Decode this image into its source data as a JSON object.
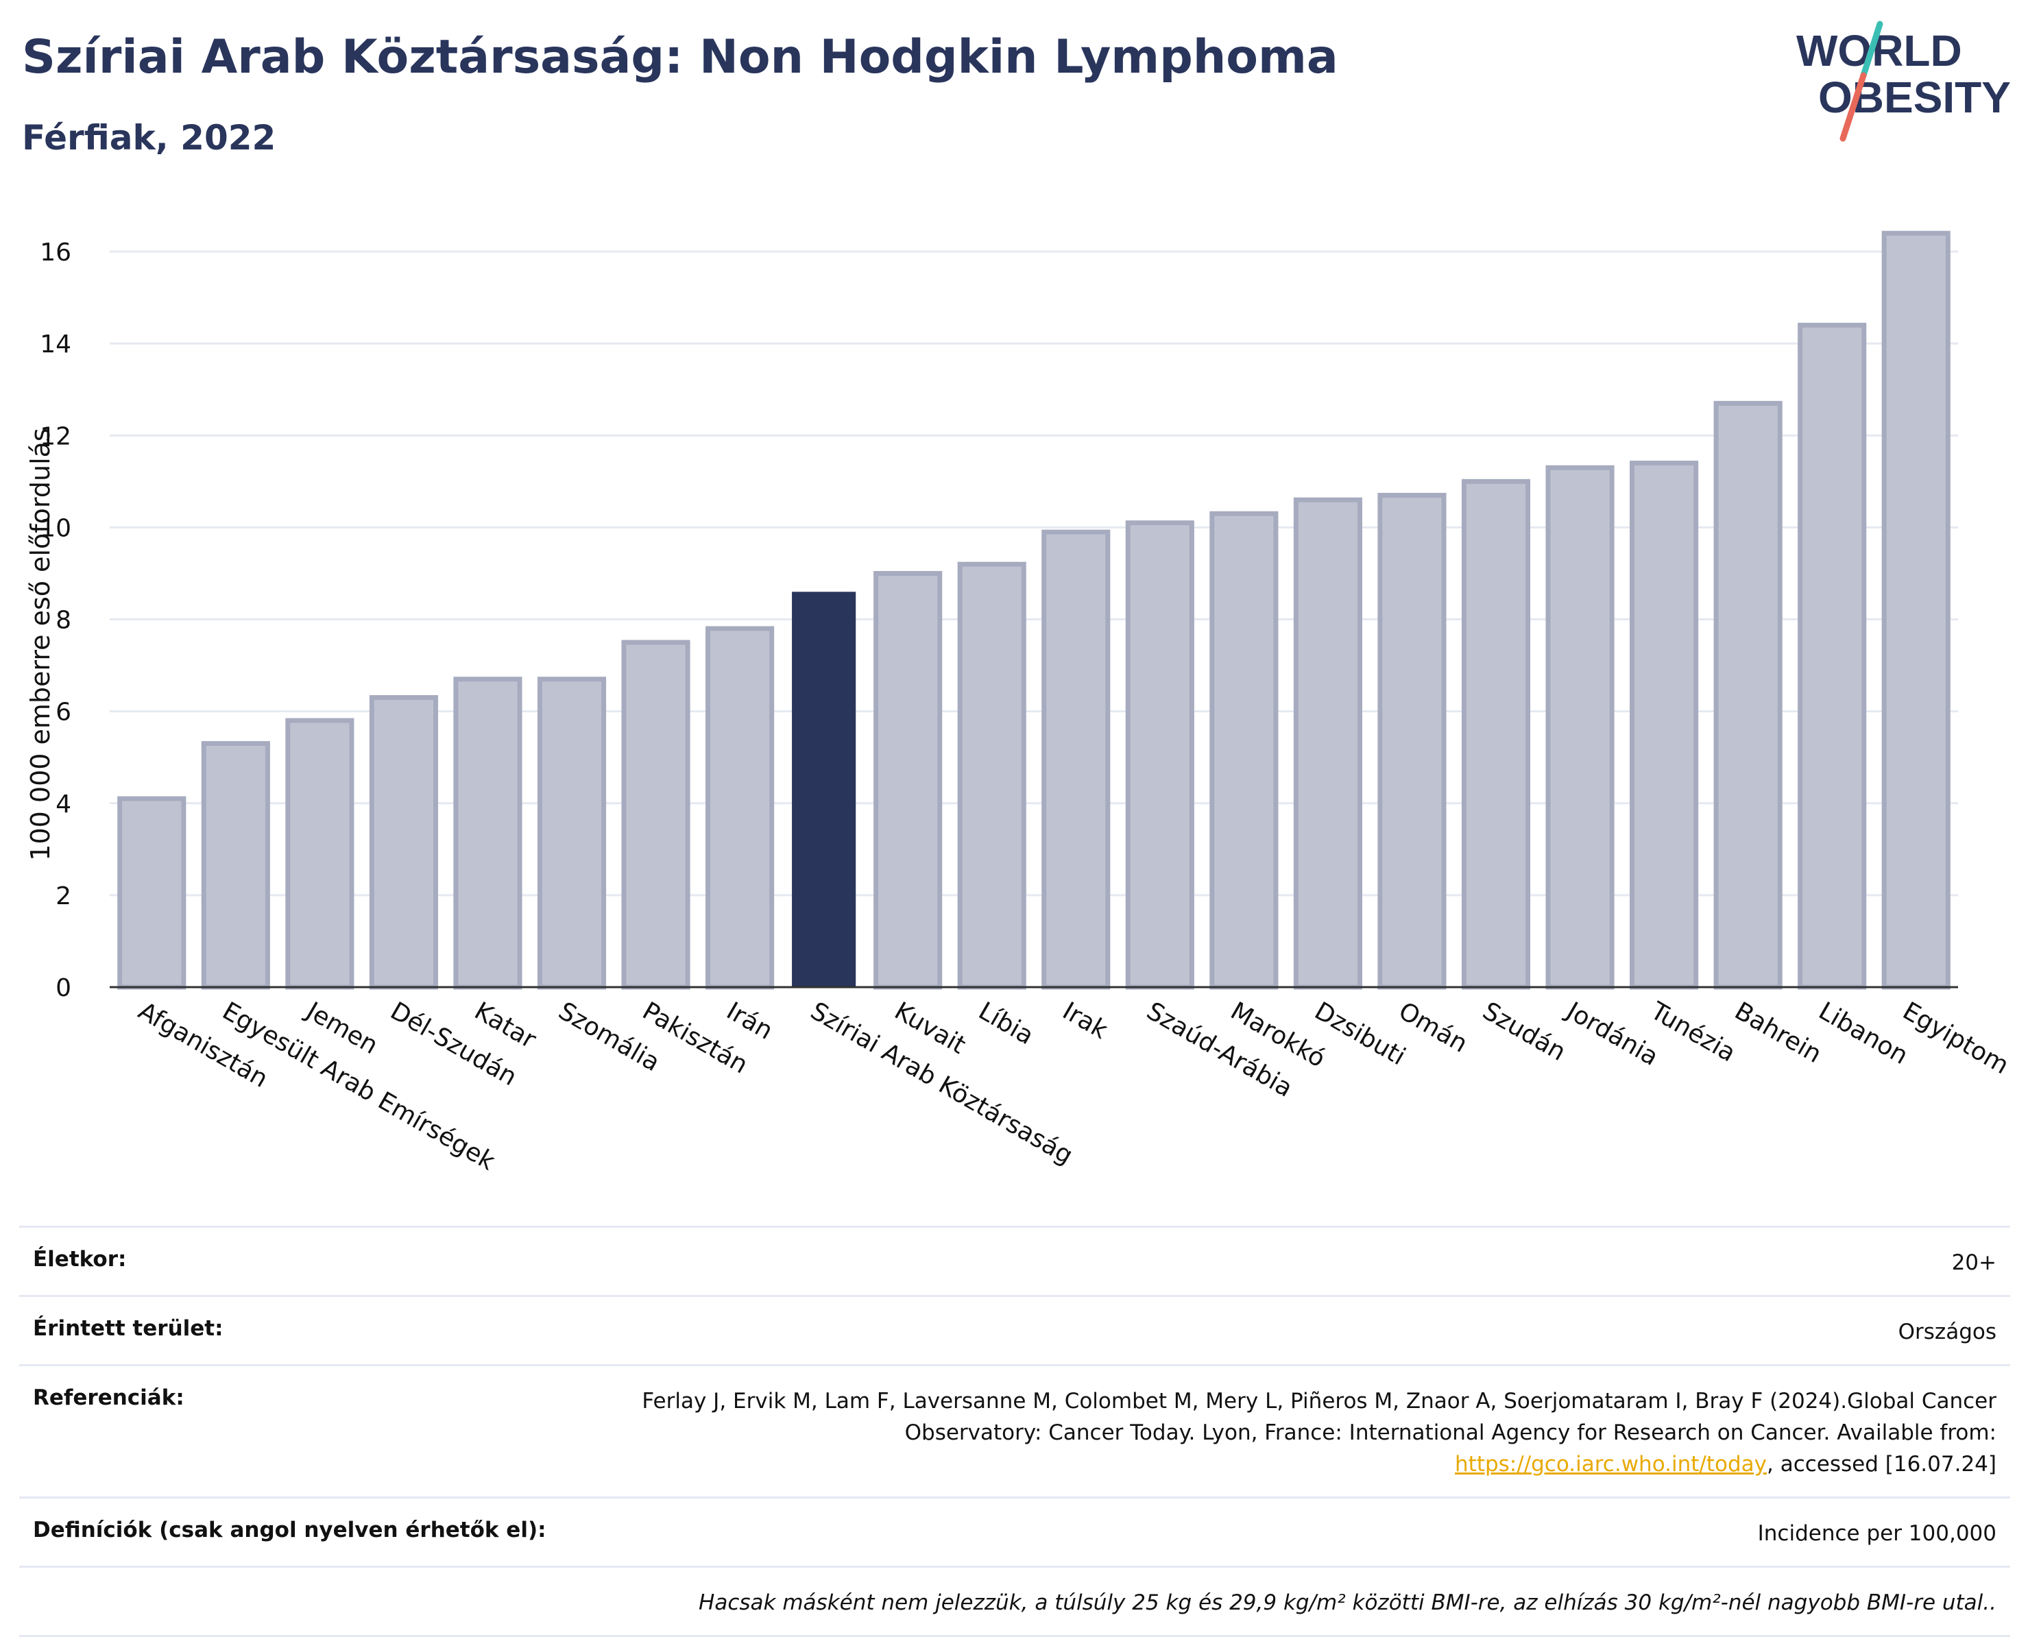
{
  "header": {
    "title": "Szíriai Arab Köztársaság: Non Hodgkin Lymphoma",
    "subtitle": "Férfiak, 2022"
  },
  "logo": {
    "line1": "WORLD",
    "line2": "OBESITY",
    "accent_colors": [
      "#3bbfb5",
      "#e8685a"
    ]
  },
  "colors": {
    "highlight_bar": "#2a355c",
    "other_bar_fill": "#bfc3d1",
    "other_bar_stroke": "#a6abbf",
    "grid": "#e6e9f2",
    "text": "#2a355c",
    "link": "#e8a900"
  },
  "chart_data": {
    "type": "bar",
    "title": "Szíriai Arab Köztársaság: Non Hodgkin Lymphoma",
    "subtitle": "Férfiak, 2022",
    "ylabel": "100 000 emberre eső előfordulás",
    "xlabel": "",
    "ylim": [
      0,
      17
    ],
    "yticks": [
      0,
      2,
      4,
      6,
      8,
      10,
      12,
      14,
      16
    ],
    "grid": true,
    "highlight": "Szíriai Arab Köztársaság",
    "categories": [
      "Afganisztán",
      "Egyesült Arab Emírségek",
      "Jemen",
      "Dél-Szudán",
      "Katar",
      "Szomália",
      "Pakisztán",
      "Irán",
      "Szíriai Arab Köztársaság",
      "Kuvait",
      "Líbia",
      "Irak",
      "Szaúd-Arábia",
      "Marokkó",
      "Dzsibuti",
      "Omán",
      "Szudán",
      "Jordánia",
      "Tunézia",
      "Bahrein",
      "Libanon",
      "Egyiptom"
    ],
    "values": [
      4.1,
      5.3,
      5.8,
      6.3,
      6.7,
      6.7,
      7.5,
      7.8,
      8.6,
      9.0,
      9.2,
      9.9,
      10.1,
      10.3,
      10.6,
      10.7,
      11.0,
      11.3,
      11.4,
      12.7,
      14.4,
      16.4
    ]
  },
  "meta": {
    "age": {
      "label": "Életkor:",
      "value": "20+"
    },
    "area": {
      "label": "Érintett terület:",
      "value": "Országos"
    },
    "refs": {
      "label": "Referenciák:",
      "text1": "Ferlay J, Ervik M, Lam F, Laversanne M, Colombet M, Mery L, Piñeros M, Znaor A, Soerjomataram I, Bray F (2024).Global Cancer Observatory: Cancer Today. Lyon, France: International Agency for Research on Cancer. Available from: ",
      "link": "https://gco.iarc.who.int/today",
      "text2": ", accessed [16.07.24]"
    },
    "defs": {
      "label": "Definíciók (csak angol nyelven érhetők el):",
      "value": "Incidence per 100,000"
    },
    "note": "Hacsak másként nem jelezzük, a túlsúly 25 kg és 29,9 kg/m² közötti BMI-re, az elhízás 30 kg/m²-nél nagyobb BMI-re utal.."
  }
}
